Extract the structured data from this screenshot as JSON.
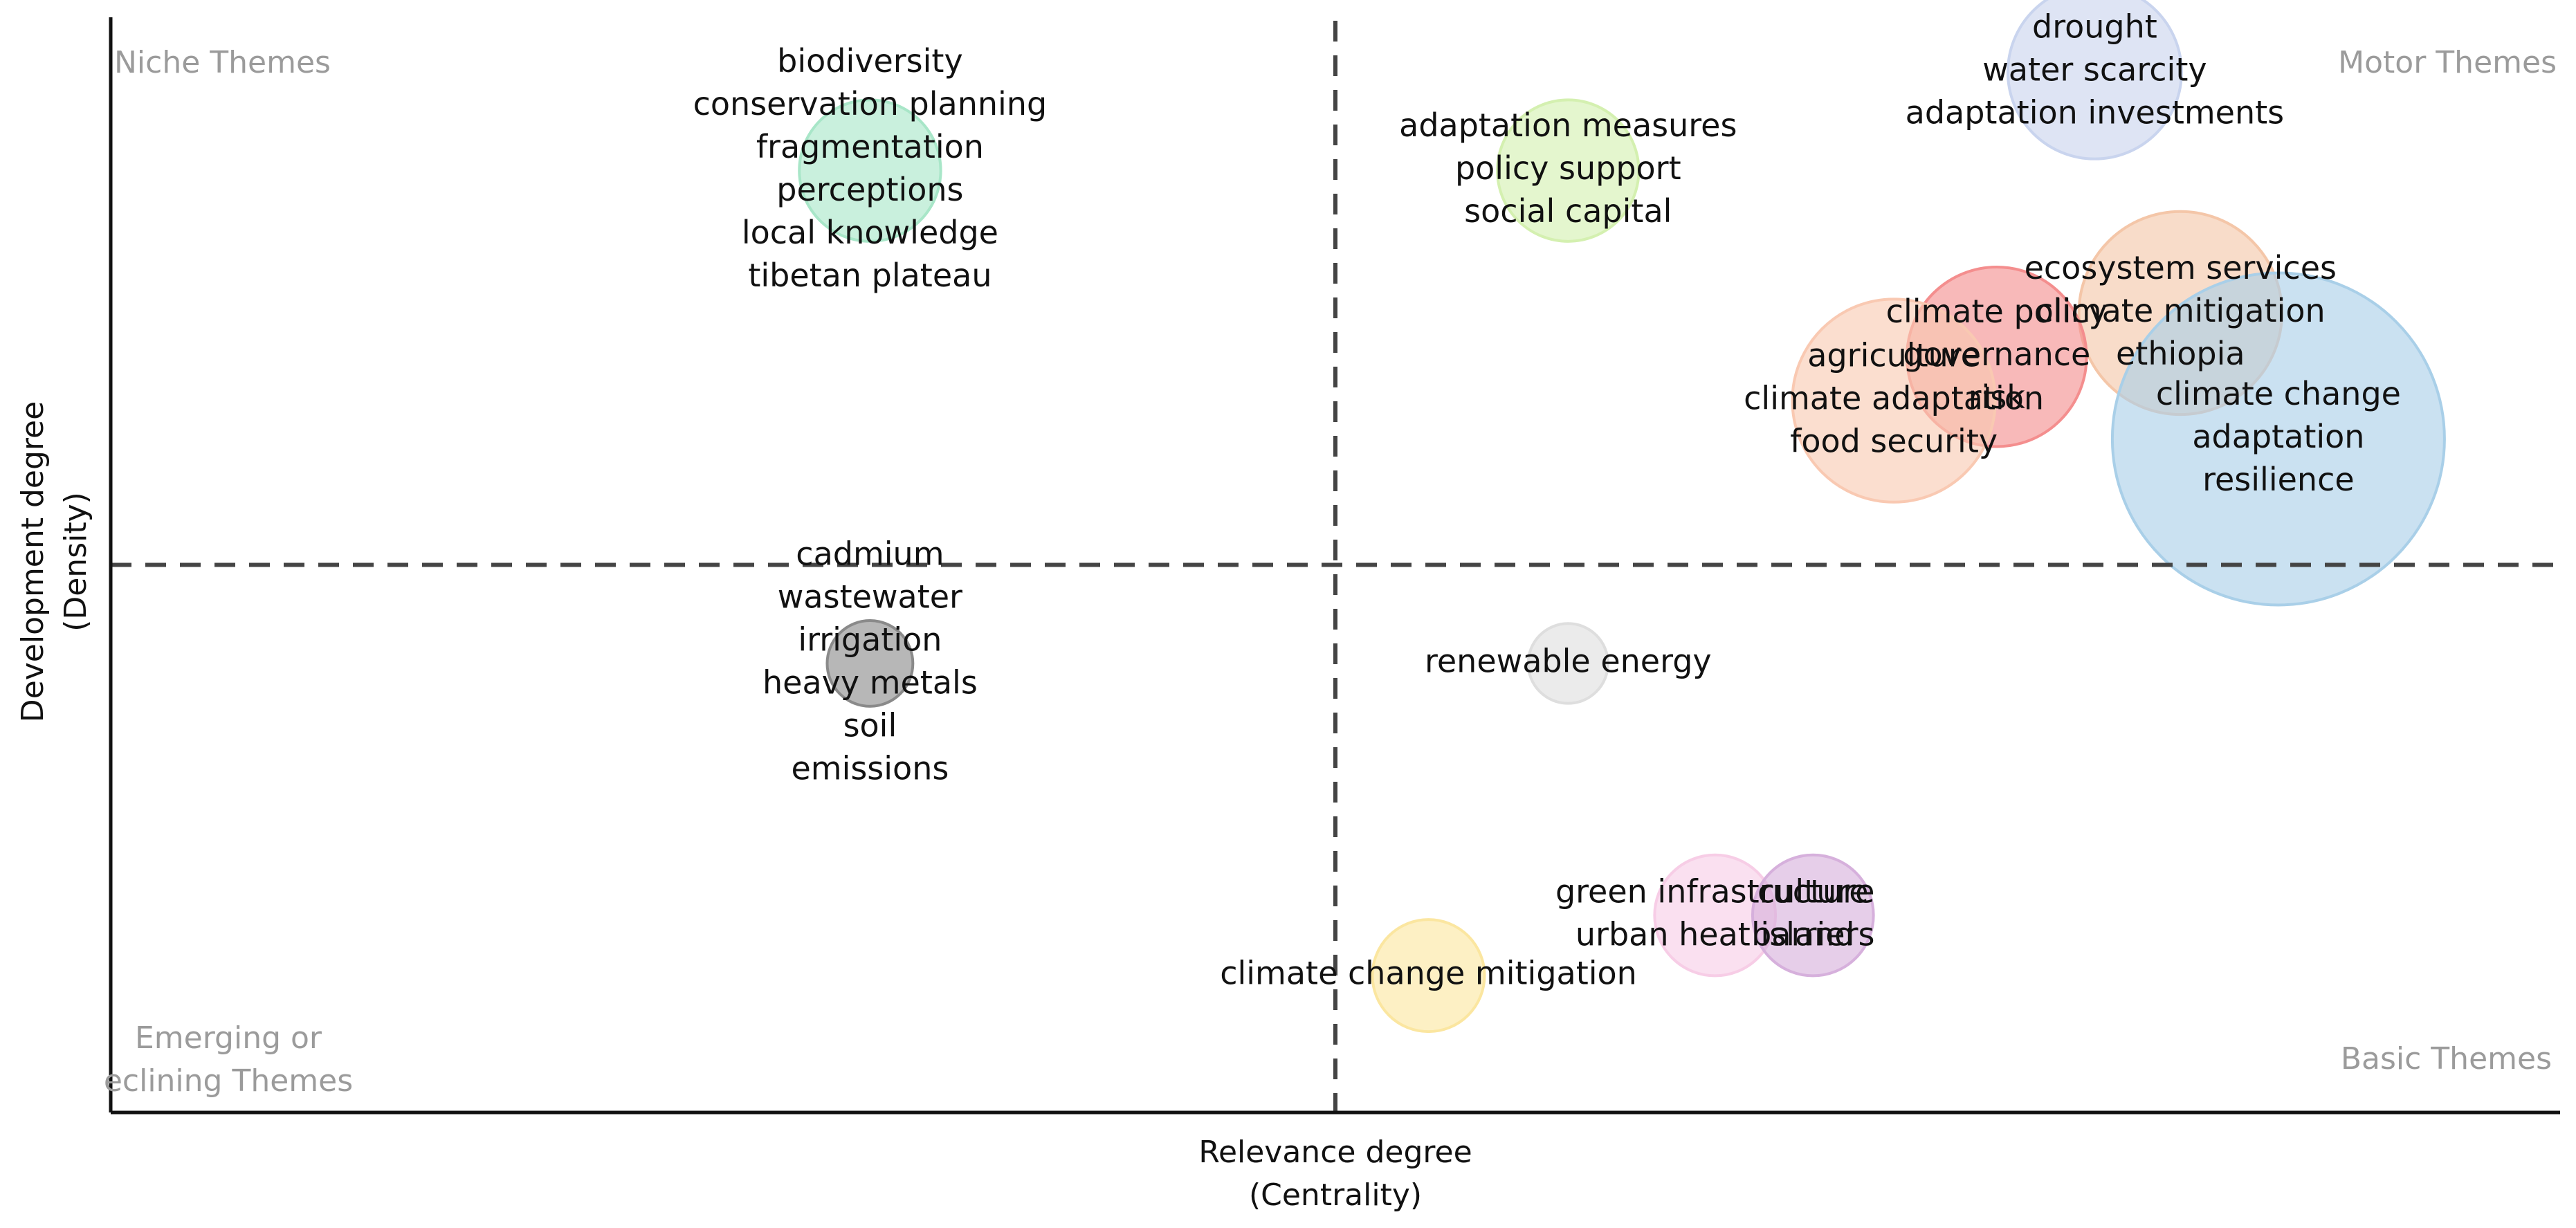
{
  "chart_data": {
    "type": "scatter",
    "xlabel": [
      "Relevance degree",
      "(Centrality)"
    ],
    "ylabel": [
      "Development degree",
      "(Density)"
    ],
    "quadrants": {
      "top_left": "Niche Themes",
      "top_right": "Motor Themes",
      "bottom_left": [
        "Emerging or",
        "eclining Themes"
      ],
      "bottom_right": "Basic Themes"
    },
    "divider_x": 0.5,
    "divider_y": 0.5,
    "clusters": [
      {
        "labels": [
          "biodiversity",
          "conservation planning",
          "fragmentation",
          "perceptions",
          "local knowledge",
          "tibetan plateau"
        ],
        "centrality": 0.31,
        "density": 0.86,
        "size": 0.35,
        "color": "#a8e6c8"
      },
      {
        "labels": [
          "adaptation measures",
          "policy support",
          "social capital"
        ],
        "centrality": 0.595,
        "density": 0.86,
        "size": 0.35,
        "color": "#d4f0b0"
      },
      {
        "labels": [
          "drought",
          "water scarcity",
          "adaptation investments"
        ],
        "centrality": 0.81,
        "density": 0.95,
        "size": 0.46,
        "color": "#c9d4ee"
      },
      {
        "labels": [
          "ecosystem services",
          "climate mitigation",
          "ethiopia"
        ],
        "centrality": 0.845,
        "density": 0.73,
        "size": 0.56,
        "color": "#f4c6a8"
      },
      {
        "labels": [
          "climate policy",
          "governance",
          "risk"
        ],
        "centrality": 0.77,
        "density": 0.69,
        "size": 0.48,
        "color": "#f48e8e"
      },
      {
        "labels": [
          "agriculture",
          "climate adaptation",
          "food security"
        ],
        "centrality": 0.728,
        "density": 0.65,
        "size": 0.56,
        "color": "#f9c9b2"
      },
      {
        "labels": [
          "climate change",
          "adaptation",
          "resilience"
        ],
        "centrality": 0.885,
        "density": 0.615,
        "size": 1.0,
        "color": "#a9cfe8"
      },
      {
        "labels": [
          "renewable energy"
        ],
        "centrality": 0.595,
        "density": 0.41,
        "size": 0.14,
        "color": "#dedede"
      },
      {
        "labels": [
          "cadmium",
          "wastewater",
          "irrigation",
          "heavy metals",
          "soil",
          "emissions"
        ],
        "centrality": 0.31,
        "density": 0.41,
        "size": 0.16,
        "color": "#8a8a8a"
      },
      {
        "labels": [
          "green infrastructure",
          "urban heat island"
        ],
        "centrality": 0.655,
        "density": 0.18,
        "size": 0.28,
        "color": "#f7cde6"
      },
      {
        "labels": [
          "culture",
          "barriers"
        ],
        "centrality": 0.695,
        "density": 0.18,
        "size": 0.28,
        "color": "#d6b0dc"
      },
      {
        "labels": [
          "climate change mitigation"
        ],
        "centrality": 0.538,
        "density": 0.125,
        "size": 0.25,
        "color": "#fbe6a0"
      }
    ]
  }
}
